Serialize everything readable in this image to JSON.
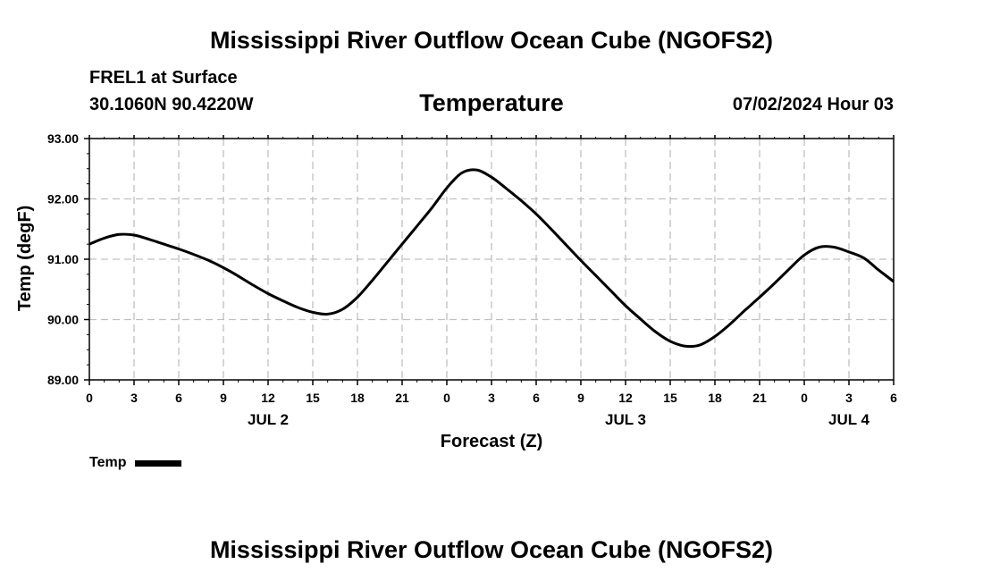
{
  "header": {
    "title": "Mississippi River Outflow Ocean Cube (NGOFS2)",
    "station": "FREL1 at Surface",
    "coords": "30.1060N  90.4220W",
    "parameter": "Temperature",
    "datetime": "07/02/2024 Hour 03"
  },
  "footer": {
    "title": "Mississippi River Outflow Ocean Cube (NGOFS2)"
  },
  "legend": {
    "label": "Temp",
    "color": "#000000"
  },
  "chart_data": {
    "type": "line",
    "title": "Temperature",
    "xlabel": "Forecast (Z)",
    "ylabel": "Temp (degF)",
    "x_unit": "hours from 00Z JUL 2",
    "xlim": [
      0,
      54
    ],
    "ylim": [
      89.0,
      93.0
    ],
    "y_ticks": [
      "89.00",
      "90.00",
      "91.00",
      "92.00",
      "93.00"
    ],
    "x_ticks": [
      {
        "hour": 0,
        "label": "0"
      },
      {
        "hour": 3,
        "label": "3"
      },
      {
        "hour": 6,
        "label": "6"
      },
      {
        "hour": 9,
        "label": "9"
      },
      {
        "hour": 12,
        "label": "12"
      },
      {
        "hour": 15,
        "label": "15"
      },
      {
        "hour": 18,
        "label": "18"
      },
      {
        "hour": 21,
        "label": "21"
      },
      {
        "hour": 24,
        "label": "0"
      },
      {
        "hour": 27,
        "label": "3"
      },
      {
        "hour": 30,
        "label": "6"
      },
      {
        "hour": 33,
        "label": "9"
      },
      {
        "hour": 36,
        "label": "12"
      },
      {
        "hour": 39,
        "label": "15"
      },
      {
        "hour": 42,
        "label": "18"
      },
      {
        "hour": 45,
        "label": "21"
      },
      {
        "hour": 48,
        "label": "0"
      },
      {
        "hour": 51,
        "label": "3"
      },
      {
        "hour": 54,
        "label": "6"
      }
    ],
    "day_labels": [
      {
        "hour": 12,
        "label": "JUL 2"
      },
      {
        "hour": 36,
        "label": "JUL 3"
      },
      {
        "hour": 51,
        "label": "JUL 4"
      }
    ],
    "grid": true,
    "legend_position": "bottom-left",
    "series": [
      {
        "name": "Temp",
        "color": "#000000",
        "x": [
          0,
          1,
          2,
          3,
          4,
          5,
          6,
          7,
          8,
          9,
          10,
          11,
          12,
          13,
          14,
          15,
          16,
          17,
          18,
          19,
          20,
          21,
          22,
          23,
          24,
          25,
          26,
          27,
          28,
          29,
          30,
          31,
          32,
          33,
          34,
          35,
          36,
          37,
          38,
          39,
          40,
          41,
          42,
          43,
          44,
          45,
          46,
          47,
          48,
          49,
          50,
          51,
          52,
          53,
          54
        ],
        "y": [
          91.25,
          91.35,
          91.41,
          91.4,
          91.33,
          91.25,
          91.17,
          91.08,
          90.98,
          90.86,
          90.72,
          90.57,
          90.43,
          90.31,
          90.2,
          90.12,
          90.09,
          90.17,
          90.37,
          90.65,
          90.95,
          91.25,
          91.55,
          91.85,
          92.18,
          92.43,
          92.48,
          92.36,
          92.17,
          91.97,
          91.75,
          91.5,
          91.24,
          90.98,
          90.73,
          90.48,
          90.23,
          90.01,
          89.8,
          89.64,
          89.56,
          89.58,
          89.72,
          89.92,
          90.15,
          90.37,
          90.6,
          90.84,
          91.07,
          91.2,
          91.2,
          91.12,
          91.02,
          90.82,
          90.63
        ]
      }
    ]
  }
}
